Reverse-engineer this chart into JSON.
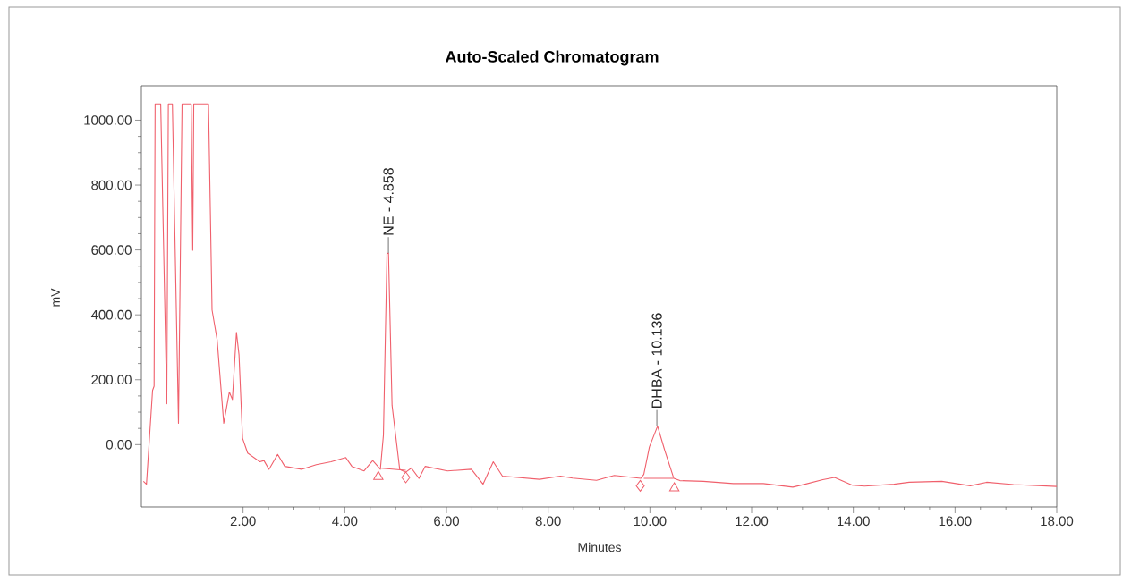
{
  "chart_data": {
    "type": "line",
    "title": "Auto-Scaled Chromatogram",
    "xlabel": "Minutes",
    "ylabel": "mV",
    "xlim": [
      0,
      18
    ],
    "ylim": [
      -192,
      1106
    ],
    "xticks": [
      {
        "value": 2,
        "label": "2.00"
      },
      {
        "value": 4,
        "label": "4.00"
      },
      {
        "value": 6,
        "label": "6.00"
      },
      {
        "value": 8,
        "label": "8.00"
      },
      {
        "value": 10,
        "label": "10.00"
      },
      {
        "value": 12,
        "label": "12.00"
      },
      {
        "value": 14,
        "label": "14.00"
      },
      {
        "value": 16,
        "label": "16.00"
      },
      {
        "value": 18,
        "label": "18.00"
      }
    ],
    "yticks": [
      {
        "value": 0,
        "label": "0.00"
      },
      {
        "value": 200,
        "label": "200.00"
      },
      {
        "value": 400,
        "label": "400.00"
      },
      {
        "value": 600,
        "label": "600.00"
      },
      {
        "value": 800,
        "label": "800.00"
      },
      {
        "value": 1000,
        "label": "1000.00"
      }
    ],
    "grid": false,
    "series": [
      {
        "color": "#f0606c",
        "marker": "none",
        "x": [
          0.04,
          0.1,
          0.22,
          0.25,
          0.27,
          0.38,
          0.5,
          0.53,
          0.61,
          0.73,
          0.8,
          0.98,
          1.01,
          1.03,
          1.32,
          1.39,
          1.49,
          1.62,
          1.73,
          1.79,
          1.87,
          1.92,
          1.99,
          2.09,
          2.33,
          2.41,
          2.51,
          2.68,
          2.82,
          3.15,
          3.44,
          3.73,
          4.02,
          4.14,
          4.38,
          4.55,
          4.7,
          4.76,
          4.83,
          4.86,
          4.93,
          5.08,
          5.2,
          5.31,
          5.46,
          5.58,
          6.02,
          6.49,
          6.72,
          6.92,
          7.1,
          7.83,
          8.24,
          8.48,
          8.95,
          9.3,
          9.82,
          9.88,
          9.99,
          10.15,
          10.29,
          10.47,
          10.59,
          11.05,
          11.64,
          12.23,
          12.81,
          13.05,
          13.4,
          13.63,
          13.98,
          14.22,
          14.8,
          15.1,
          15.74,
          16.3,
          16.62,
          17.15,
          18.0
        ],
        "values": [
          -113,
          -122,
          167,
          180,
          1050,
          1050,
          126,
          1050,
          1050,
          66,
          1050,
          1050,
          599,
          1050,
          1050,
          415,
          323,
          66,
          162,
          139,
          346,
          277,
          20,
          -26,
          -53,
          -49,
          -76,
          -30,
          -67,
          -76,
          -62,
          -53,
          -40,
          -67,
          -81,
          -49,
          -76,
          29,
          589,
          590,
          121,
          -76,
          -85,
          -72,
          -104,
          -67,
          -81,
          -76,
          -122,
          -53,
          -97,
          -107,
          -97,
          -103,
          -110,
          -95,
          -104,
          -92,
          -7,
          57,
          -17,
          -104,
          -111,
          -113,
          -120,
          -120,
          -131,
          -122,
          -108,
          -101,
          -125,
          -128,
          -122,
          -116,
          -113,
          -127,
          -116,
          -123,
          -129
        ]
      },
      {
        "type": "line",
        "color": "#f0606c",
        "marker": "none",
        "x": [
          4.67,
          5.2
        ],
        "values": [
          -72,
          -79
        ]
      },
      {
        "type": "line",
        "color": "#f0606c",
        "marker": "none",
        "x": [
          9.88,
          10.46
        ],
        "values": [
          -104,
          -104
        ]
      },
      {
        "type": "scatter",
        "color": "#f0606c",
        "marker": "triangle",
        "x": [
          4.66,
          10.48
        ],
        "values": [
          -99,
          -134
        ]
      },
      {
        "type": "scatter",
        "color": "#f0606c",
        "marker": "diamond",
        "x": [
          5.2,
          9.81
        ],
        "values": [
          -101,
          -127
        ]
      }
    ],
    "annotations": [
      {
        "text": "NE - 4.858",
        "x": 4.858,
        "y": 590
      },
      {
        "text": "DHBA - 10.136",
        "x": 10.136,
        "y": 57
      }
    ]
  }
}
